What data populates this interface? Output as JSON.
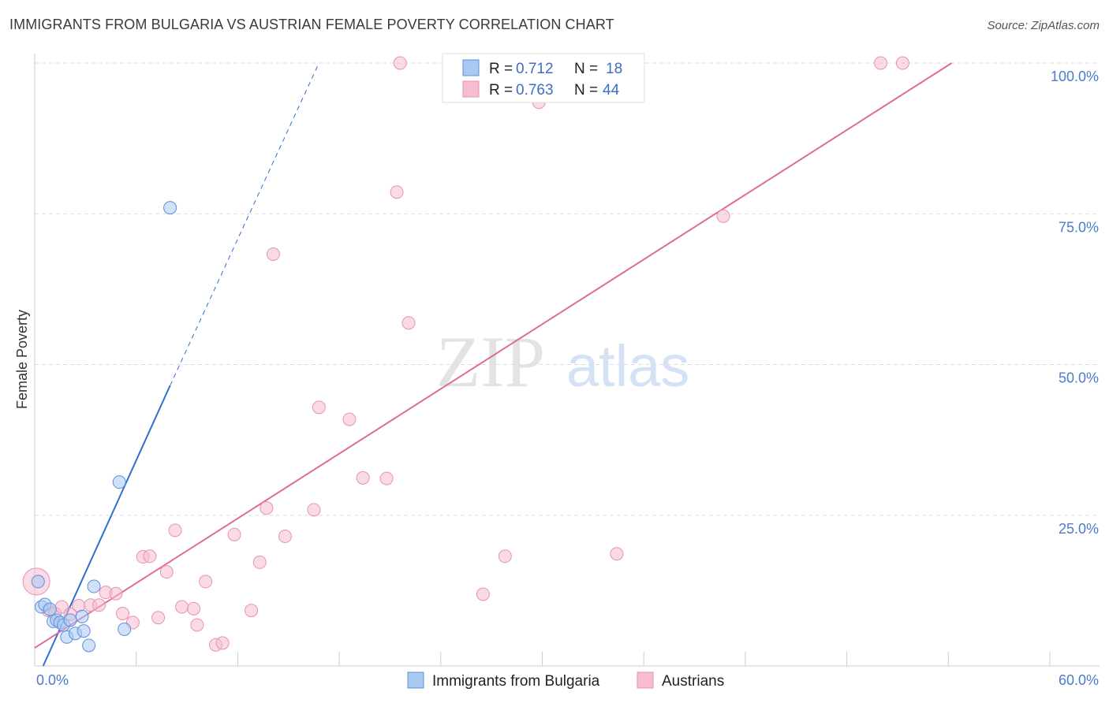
{
  "title": "IMMIGRANTS FROM BULGARIA VS AUSTRIAN FEMALE POVERTY CORRELATION CHART",
  "source": "Source: ZipAtlas.com",
  "colors": {
    "blue_fill": "#a9c8f2",
    "blue_stroke": "#5b8fdb",
    "blue_line": "#2b6fd1",
    "pink_fill": "#f6bcd0",
    "pink_stroke": "#e693b0",
    "pink_line": "#e06b94",
    "tick_text": "#4a7cc9",
    "grid": "#dddddd"
  },
  "legend": {
    "r_label": "R =",
    "n_label": "N =",
    "series": [
      {
        "r": "0.712",
        "n": "18"
      },
      {
        "r": "0.763",
        "n": "44"
      }
    ]
  },
  "chart_data": {
    "type": "scatter",
    "xlabel": "",
    "ylabel": "Female Poverty",
    "xlim": [
      0,
      60
    ],
    "ylim": [
      0,
      100
    ],
    "x_tick_labels": [
      "0.0%",
      "60.0%"
    ],
    "y_ticks": [
      25,
      50,
      75,
      100
    ],
    "y_tick_labels": [
      "25.0%",
      "50.0%",
      "75.0%",
      "100.0%"
    ],
    "watermark": {
      "part1": "ZIP",
      "part2": "atlas"
    },
    "series": [
      {
        "name": "Immigrants from Bulgaria",
        "color": "blue",
        "points": [
          [
            0.2,
            14.0
          ],
          [
            0.4,
            9.8
          ],
          [
            0.6,
            10.2
          ],
          [
            0.9,
            9.4
          ],
          [
            1.1,
            7.4
          ],
          [
            1.3,
            7.6
          ],
          [
            1.5,
            7.2
          ],
          [
            1.7,
            6.8
          ],
          [
            1.9,
            4.8
          ],
          [
            2.1,
            7.6
          ],
          [
            2.4,
            5.4
          ],
          [
            2.8,
            8.2
          ],
          [
            2.9,
            5.8
          ],
          [
            3.2,
            3.4
          ],
          [
            3.5,
            13.2
          ],
          [
            5.0,
            30.5
          ],
          [
            5.3,
            6.1
          ],
          [
            8.0,
            76.0
          ]
        ],
        "trend": {
          "x0": 0.5,
          "y0": 0.0,
          "x1": 8.0,
          "y1": 46.5,
          "dash_x1": 16.8,
          "dash_y1": 100.0
        }
      },
      {
        "name": "Austrians",
        "color": "pink",
        "points": [
          [
            0.1,
            14.0
          ],
          [
            0.8,
            9.2
          ],
          [
            1.2,
            8.7
          ],
          [
            1.6,
            9.8
          ],
          [
            2.1,
            8.6
          ],
          [
            2.6,
            10.0
          ],
          [
            3.3,
            10.1
          ],
          [
            3.8,
            10.1
          ],
          [
            4.2,
            12.2
          ],
          [
            4.8,
            12.0
          ],
          [
            5.2,
            8.7
          ],
          [
            5.8,
            7.2
          ],
          [
            6.4,
            18.1
          ],
          [
            6.8,
            18.2
          ],
          [
            7.3,
            8.0
          ],
          [
            7.8,
            15.6
          ],
          [
            8.3,
            22.5
          ],
          [
            8.7,
            9.8
          ],
          [
            9.4,
            9.5
          ],
          [
            9.6,
            6.8
          ],
          [
            10.1,
            14.0
          ],
          [
            10.7,
            3.5
          ],
          [
            11.1,
            3.8
          ],
          [
            11.8,
            21.8
          ],
          [
            12.8,
            9.2
          ],
          [
            13.3,
            17.2
          ],
          [
            13.7,
            26.2
          ],
          [
            14.1,
            68.3
          ],
          [
            14.8,
            21.5
          ],
          [
            16.5,
            25.9
          ],
          [
            16.8,
            42.9
          ],
          [
            18.6,
            40.9
          ],
          [
            19.4,
            31.2
          ],
          [
            20.8,
            31.1
          ],
          [
            21.4,
            78.6
          ],
          [
            21.6,
            100.0
          ],
          [
            22.1,
            56.9
          ],
          [
            26.5,
            11.9
          ],
          [
            27.8,
            18.2
          ],
          [
            29.8,
            93.5
          ],
          [
            34.4,
            18.6
          ],
          [
            40.7,
            74.6
          ],
          [
            50.0,
            100.0
          ],
          [
            51.3,
            100.0
          ]
        ],
        "trend": {
          "x0": 0.0,
          "y0": 3.0,
          "x1": 54.2,
          "y1": 100.0
        }
      }
    ]
  }
}
